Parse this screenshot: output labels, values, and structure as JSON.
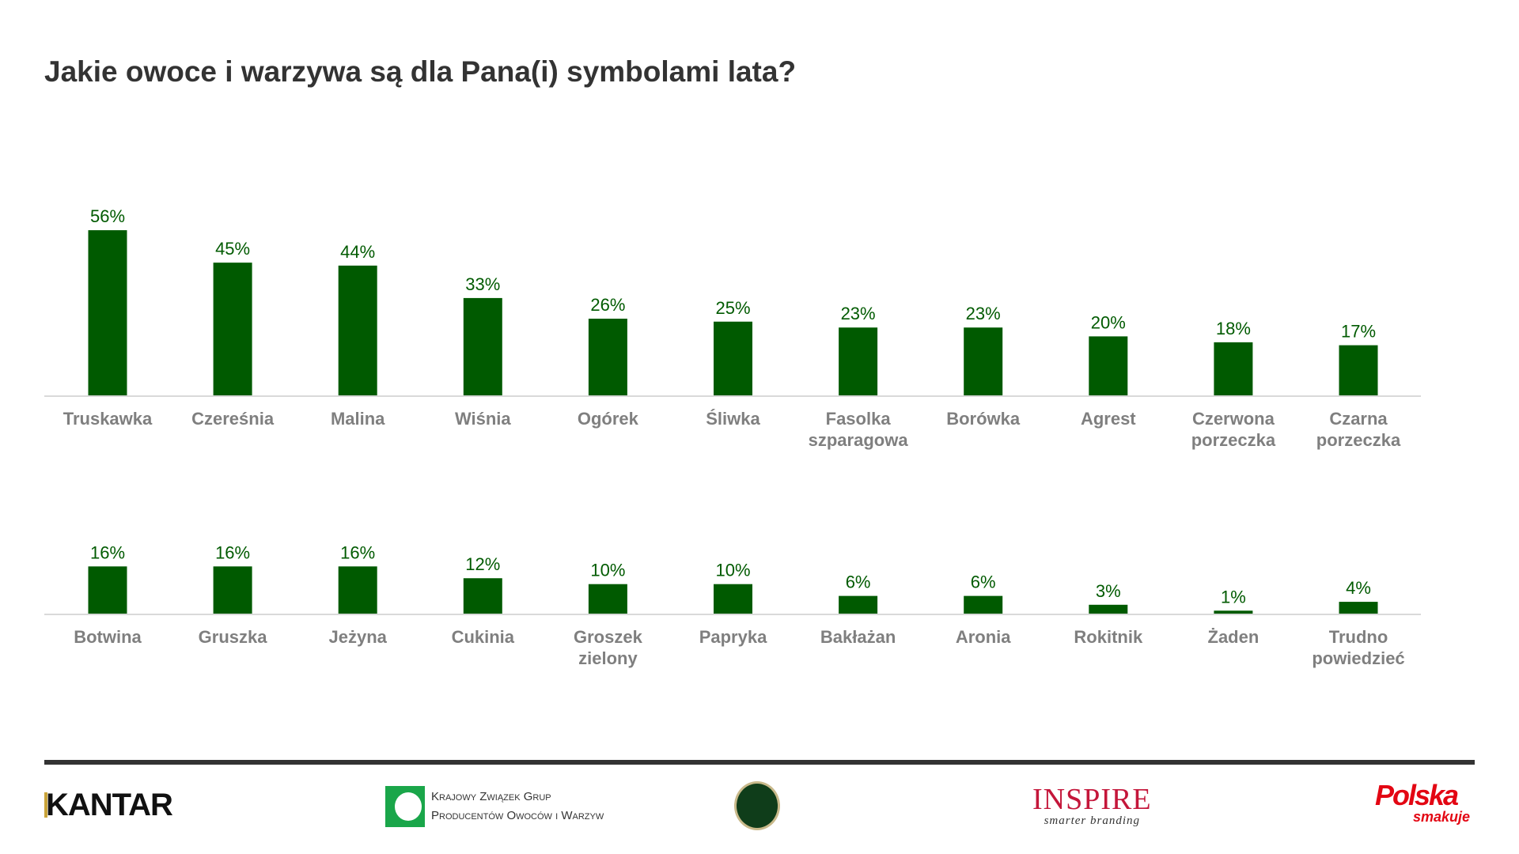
{
  "title": "Jakie owoce i warzywa są dla Pana(i) symbolami lata?",
  "colors": {
    "bar": "#005a00",
    "value_label": "#005a00",
    "category_label": "#7f7f7f",
    "axis": "#d9d9d9"
  },
  "chart_data": [
    {
      "type": "bar",
      "categories": [
        "Truskawka",
        "Czereśnia",
        "Malina",
        "Wiśnia",
        "Ogórek",
        "Śliwka",
        "Fasolka szparagowa",
        "Borówka",
        "Agrest",
        "Czerwona porzeczka",
        "Czarna porzeczka"
      ],
      "values": [
        56,
        45,
        44,
        33,
        26,
        25,
        23,
        23,
        20,
        18,
        17
      ],
      "value_labels": [
        "56%",
        "45%",
        "44%",
        "33%",
        "26%",
        "25%",
        "23%",
        "23%",
        "20%",
        "18%",
        "17%"
      ],
      "unit": "%",
      "grid": false
    },
    {
      "type": "bar",
      "categories": [
        "Botwina",
        "Gruszka",
        "Jeżyna",
        "Cukinia",
        "Groszek zielony",
        "Papryka",
        "Bakłażan",
        "Aronia",
        "Rokitnik",
        "Żaden",
        "Trudno powiedzieć"
      ],
      "values": [
        16,
        16,
        16,
        12,
        10,
        10,
        6,
        6,
        3,
        1,
        4
      ],
      "value_labels": [
        "16%",
        "16%",
        "16%",
        "12%",
        "10%",
        "10%",
        "6%",
        "6%",
        "3%",
        "1%",
        "4%"
      ],
      "unit": "%",
      "grid": false
    }
  ],
  "footer": {
    "logos": {
      "kantar": "KANTAR",
      "kzgp_line1": "Krajowy Związek Grup",
      "kzgp_line2": "Producentów Owoców i Warzyw",
      "inspire": "INSPIRE",
      "inspire_tagline": "smarter branding",
      "polska": "Polska",
      "polska_tagline": "smakuje"
    }
  }
}
